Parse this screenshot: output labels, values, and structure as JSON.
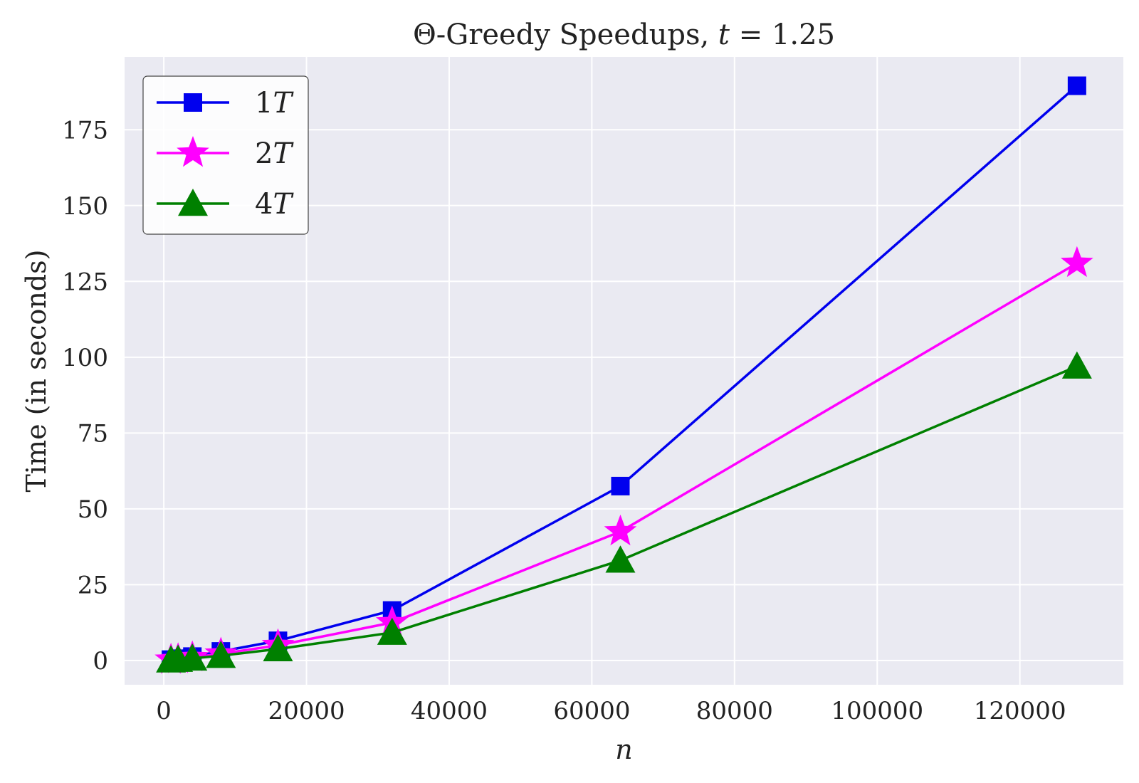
{
  "chart_data": {
    "type": "line",
    "title_main": "Θ-Greedy Speedups, ",
    "title_var": "t",
    "title_eq": " = 1.25",
    "xlabel": "n",
    "ylabel": "Time (in seconds)",
    "xlim": [
      -5500,
      134500
    ],
    "ylim": [
      -8,
      199
    ],
    "xticks": [
      0,
      20000,
      40000,
      60000,
      80000,
      100000,
      120000
    ],
    "xtick_labels": [
      "0",
      "20000",
      "40000",
      "60000",
      "80000",
      "100000",
      "120000"
    ],
    "yticks": [
      0,
      25,
      50,
      75,
      100,
      125,
      150,
      175
    ],
    "ytick_labels": [
      "0",
      "25",
      "50",
      "75",
      "100",
      "125",
      "150",
      "175"
    ],
    "grid": true,
    "legend_position": "top-left",
    "x": [
      1000,
      2000,
      4000,
      8000,
      16000,
      32000,
      64000,
      128000
    ],
    "series": [
      {
        "name": "1T",
        "num": "1",
        "var": "T",
        "color": "#0000ee",
        "marker": "square",
        "values": [
          0.3,
          0.6,
          1.3,
          3.0,
          6.5,
          16.5,
          57.5,
          189.5
        ]
      },
      {
        "name": "2T",
        "num": "2",
        "var": "T",
        "color": "#ff00ff",
        "marker": "star",
        "values": [
          0.2,
          0.4,
          1.0,
          2.2,
          5.0,
          12.5,
          42.5,
          131.0
        ]
      },
      {
        "name": "4T",
        "num": "4",
        "var": "T",
        "color": "#008000",
        "marker": "triangle",
        "values": [
          0.1,
          0.3,
          0.7,
          1.6,
          3.8,
          9.2,
          33.0,
          97.0
        ]
      }
    ]
  }
}
